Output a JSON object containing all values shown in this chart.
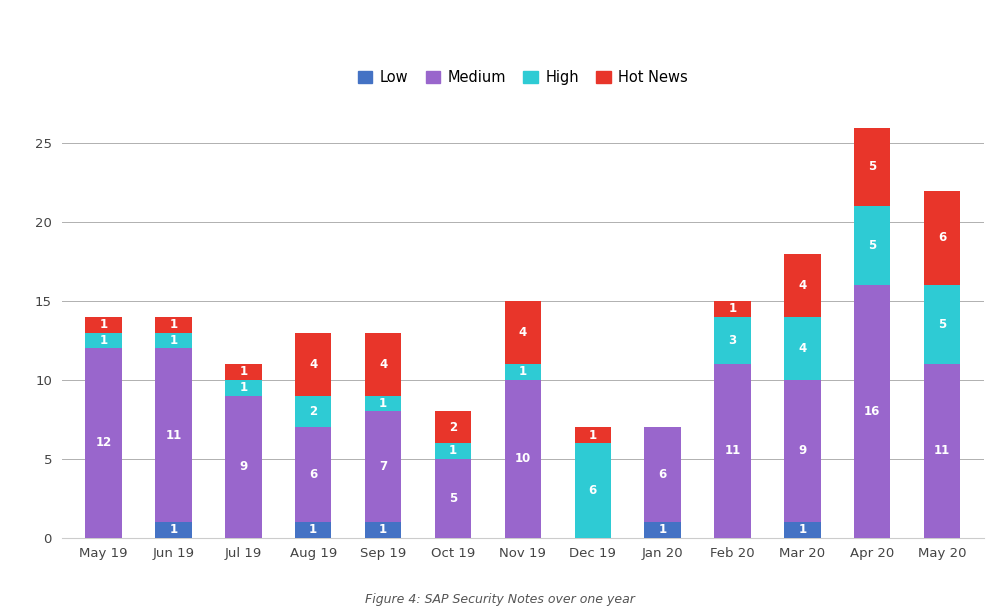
{
  "categories": [
    "May 19",
    "Jun 19",
    "Jul 19",
    "Aug 19",
    "Sep 19",
    "Oct 19",
    "Nov 19",
    "Dec 19",
    "Jan 20",
    "Feb 20",
    "Mar 20",
    "Apr 20",
    "May 20"
  ],
  "low": [
    0,
    1,
    0,
    1,
    1,
    0,
    0,
    0,
    1,
    0,
    1,
    0,
    0
  ],
  "medium": [
    12,
    11,
    9,
    6,
    7,
    5,
    10,
    0,
    6,
    11,
    9,
    16,
    11
  ],
  "high": [
    1,
    1,
    1,
    2,
    1,
    1,
    1,
    6,
    0,
    3,
    4,
    5,
    5
  ],
  "hot_news": [
    1,
    1,
    1,
    4,
    4,
    2,
    4,
    1,
    0,
    1,
    4,
    5,
    6
  ],
  "color_low": "#4472C4",
  "color_medium": "#9966CC",
  "color_high": "#2ECBD4",
  "color_hot_news": "#E8352A",
  "ylim": [
    0,
    27
  ],
  "yticks": [
    0,
    5,
    10,
    15,
    20,
    25
  ],
  "caption": "Figure 4: SAP Security Notes over one year",
  "background_color": "#ffffff",
  "grid_color": "#b0b0b0",
  "bar_width": 0.52,
  "label_fontsize": 8.5,
  "tick_fontsize": 9.5,
  "legend_fontsize": 10.5
}
